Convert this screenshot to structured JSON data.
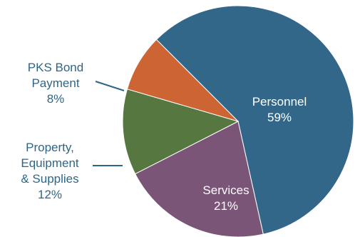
{
  "chart_data": {
    "type": "pie",
    "slices": [
      {
        "label": "Personnel",
        "pct_label": "59%",
        "value": 59,
        "color": "#32678a",
        "label_pos": "inside"
      },
      {
        "label": "Services",
        "pct_label": "21%",
        "value": 21,
        "color": "#7a5577",
        "label_pos": "inside"
      },
      {
        "label": "Property,\nEquipment\n& Supplies",
        "pct_label": "12%",
        "value": 12,
        "color": "#56773f",
        "label_pos": "outside"
      },
      {
        "label": "PKS Bond\nPayment",
        "pct_label": "8%",
        "value": 8,
        "color": "#cd6434",
        "label_pos": "outside"
      }
    ]
  }
}
